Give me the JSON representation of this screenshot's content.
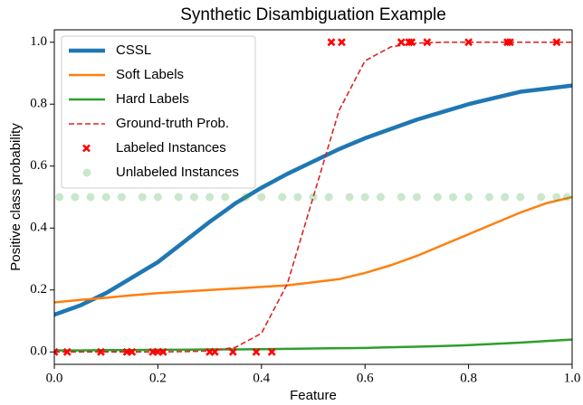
{
  "chart_data": {
    "type": "line",
    "title": "Synthetic Disambiguation Example",
    "x_label": "Feature",
    "y_label": "Positive class probability",
    "xlim": [
      0,
      1
    ],
    "ylim": [
      -0.04,
      1.04
    ],
    "xticks": [
      {
        "value": 0,
        "label": "0.0"
      },
      0.2,
      0.4,
      0.6,
      0.8,
      {
        "value": 1,
        "label": "1.0"
      }
    ],
    "yticks": [
      {
        "value": 0,
        "label": "0.0"
      },
      0.2,
      0.4,
      0.6,
      0.8,
      {
        "value": 1,
        "label": "1.0"
      }
    ],
    "legend": "upper left",
    "x": [
      0,
      0.05,
      0.1,
      0.15,
      0.2,
      0.25,
      0.3,
      0.35,
      0.4,
      0.45,
      0.5,
      0.55,
      0.6,
      0.65,
      0.7,
      0.75,
      0.8,
      0.85,
      0.9,
      0.95,
      1
    ],
    "series": [
      {
        "name": "CSSL",
        "color": "#1f77b4",
        "style": "thick",
        "values": [
          0.12,
          0.15,
          0.19,
          0.24,
          0.29,
          0.355,
          0.42,
          0.48,
          0.53,
          0.575,
          0.615,
          0.655,
          0.69,
          0.72,
          0.75,
          0.775,
          0.8,
          0.82,
          0.84,
          0.85,
          0.86
        ]
      },
      {
        "name": "Soft Labels",
        "color": "#ff7f0e",
        "style": "solid",
        "values": [
          0.16,
          0.168,
          0.175,
          0.183,
          0.19,
          0.195,
          0.2,
          0.205,
          0.21,
          0.215,
          0.225,
          0.235,
          0.255,
          0.28,
          0.31,
          0.345,
          0.38,
          0.415,
          0.45,
          0.48,
          0.5
        ]
      },
      {
        "name": "Hard Labels",
        "color": "#2ca02c",
        "style": "solid",
        "values": [
          0.005,
          0.005,
          0.006,
          0.006,
          0.007,
          0.007,
          0.008,
          0.008,
          0.009,
          0.01,
          0.011,
          0.012,
          0.013,
          0.015,
          0.017,
          0.019,
          0.022,
          0.026,
          0.03,
          0.035,
          0.04
        ]
      },
      {
        "name": "Ground-truth Prob.",
        "color": "#d62728",
        "style": "dashed",
        "values": [
          0,
          0,
          0,
          0,
          0,
          0.001,
          0.003,
          0.015,
          0.06,
          0.22,
          0.5,
          0.78,
          0.94,
          0.985,
          0.997,
          1,
          1,
          1,
          1,
          1,
          1
        ]
      },
      {
        "name": "Labeled Instances",
        "color": "#ff0000",
        "style": "cross",
        "x": [
          0,
          0.025,
          0.09,
          0.14,
          0.15,
          0.19,
          0.2,
          0.21,
          0.3,
          0.31,
          0.345,
          0.39,
          0.42,
          0.535,
          0.555,
          0.67,
          0.685,
          0.69,
          0.72,
          0.8,
          0.875,
          0.88,
          0.97
        ],
        "values": [
          0,
          0,
          0,
          0,
          0,
          0,
          0,
          0,
          0,
          0,
          0,
          0,
          0,
          1,
          1,
          1,
          1,
          1,
          1,
          1,
          1,
          1,
          1
        ]
      },
      {
        "name": "Unlabeled Instances",
        "color": "#2ca02c",
        "style": "dot",
        "x": [
          0.01,
          0.04,
          0.07,
          0.1,
          0.13,
          0.17,
          0.2,
          0.24,
          0.27,
          0.3,
          0.33,
          0.37,
          0.4,
          0.44,
          0.47,
          0.5,
          0.53,
          0.57,
          0.6,
          0.63,
          0.67,
          0.7,
          0.74,
          0.77,
          0.8,
          0.84,
          0.87,
          0.9,
          0.94,
          0.97,
          0.99
        ],
        "values": [
          0.5,
          0.5,
          0.5,
          0.5,
          0.5,
          0.5,
          0.5,
          0.5,
          0.5,
          0.5,
          0.5,
          0.5,
          0.5,
          0.5,
          0.5,
          0.5,
          0.5,
          0.5,
          0.5,
          0.5,
          0.5,
          0.5,
          0.5,
          0.5,
          0.5,
          0.5,
          0.5,
          0.5,
          0.5,
          0.5,
          0.5
        ]
      }
    ]
  }
}
